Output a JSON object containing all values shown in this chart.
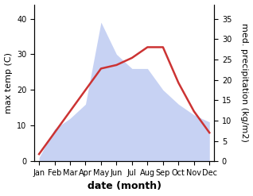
{
  "months": [
    "Jan",
    "Feb",
    "Mar",
    "Apr",
    "May",
    "Jun",
    "Jul",
    "Aug",
    "Sep",
    "Oct",
    "Nov",
    "Dec"
  ],
  "month_indices": [
    0,
    1,
    2,
    3,
    4,
    5,
    6,
    7,
    8,
    9,
    10,
    11
  ],
  "temperature": [
    2,
    8,
    14,
    20,
    26,
    27,
    29,
    32,
    32,
    22,
    14,
    8
  ],
  "precipitation": [
    1,
    9,
    12,
    16,
    39,
    30,
    26,
    26,
    20,
    16,
    13,
    11
  ],
  "temp_color": "#cc3333",
  "precip_fill_color": "#aabbee",
  "precip_fill_alpha": 0.65,
  "left_ylim": [
    0,
    44
  ],
  "left_yticks": [
    0,
    10,
    20,
    30,
    40
  ],
  "right_ylim": [
    0,
    38.5
  ],
  "right_yticks": [
    0,
    5,
    10,
    15,
    20,
    25,
    30,
    35
  ],
  "ylabel_left": "max temp (C)",
  "ylabel_right": "med. precipitation (kg/m2)",
  "xlabel": "date (month)",
  "xlabel_fontsize": 9,
  "xlabel_fontweight": "bold",
  "ylabel_fontsize": 8,
  "tick_fontsize": 7,
  "line_width": 1.8,
  "right_label_va": "bottom"
}
